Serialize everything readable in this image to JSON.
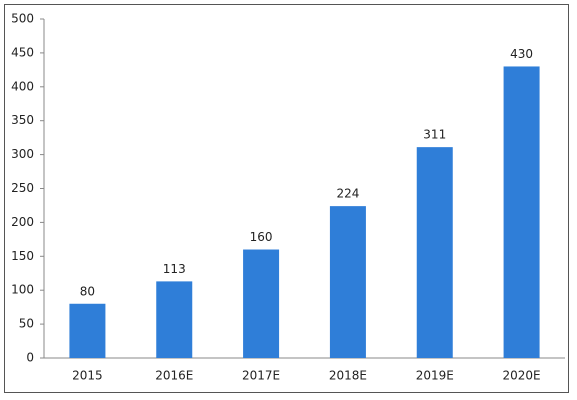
{
  "chart_data": {
    "type": "bar",
    "categories": [
      "2015",
      "2016E",
      "2017E",
      "2018E",
      "2019E",
      "2020E"
    ],
    "values": [
      80,
      113,
      160,
      224,
      311,
      430
    ],
    "color": "#2f7ed8",
    "ylim": [
      0,
      500
    ],
    "yticks": [
      0,
      50,
      100,
      150,
      200,
      250,
      300,
      350,
      400,
      450,
      500
    ],
    "grid": false,
    "data_labels": true
  }
}
